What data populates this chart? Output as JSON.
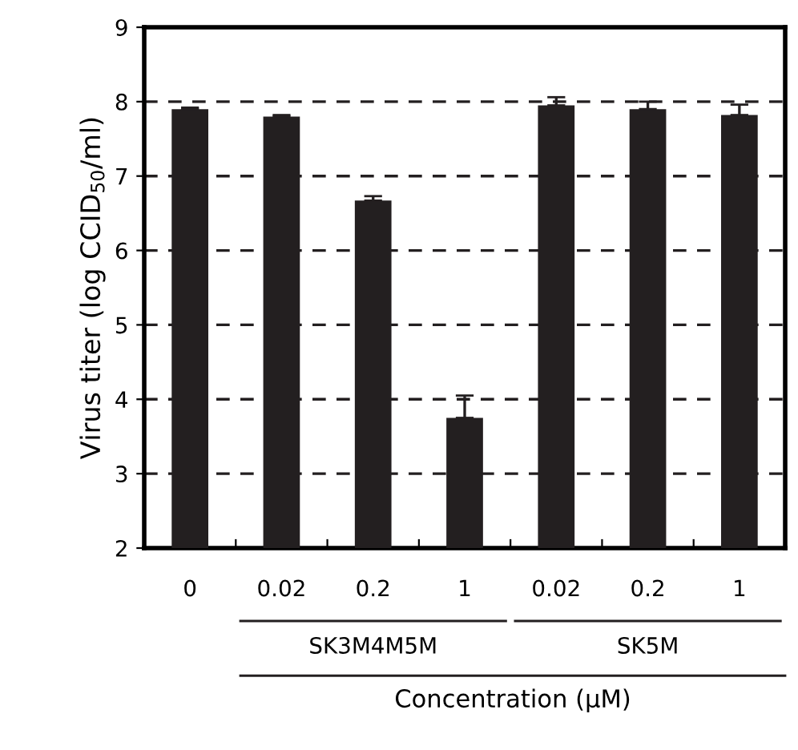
{
  "chart_data": {
    "type": "bar",
    "xlabel": "Concentration (μM)",
    "ylabel": "Virus titer (log CCID$_{50}$/ml)",
    "categories": [
      "0",
      "0.02",
      "0.2",
      "1",
      "0.02",
      "0.2",
      "1"
    ],
    "values": [
      7.9,
      7.8,
      6.67,
      3.75,
      7.95,
      7.9,
      7.82
    ],
    "errors": [
      0.02,
      0.02,
      0.06,
      0.3,
      0.11,
      0.1,
      0.14
    ],
    "color": "#231f20",
    "ylim": [
      2,
      9
    ],
    "yticks": [
      2,
      3,
      4,
      5,
      6,
      7,
      8,
      9
    ],
    "grid": "y",
    "annotations": [
      "SK3M4M5M",
      "SK5M"
    ]
  }
}
